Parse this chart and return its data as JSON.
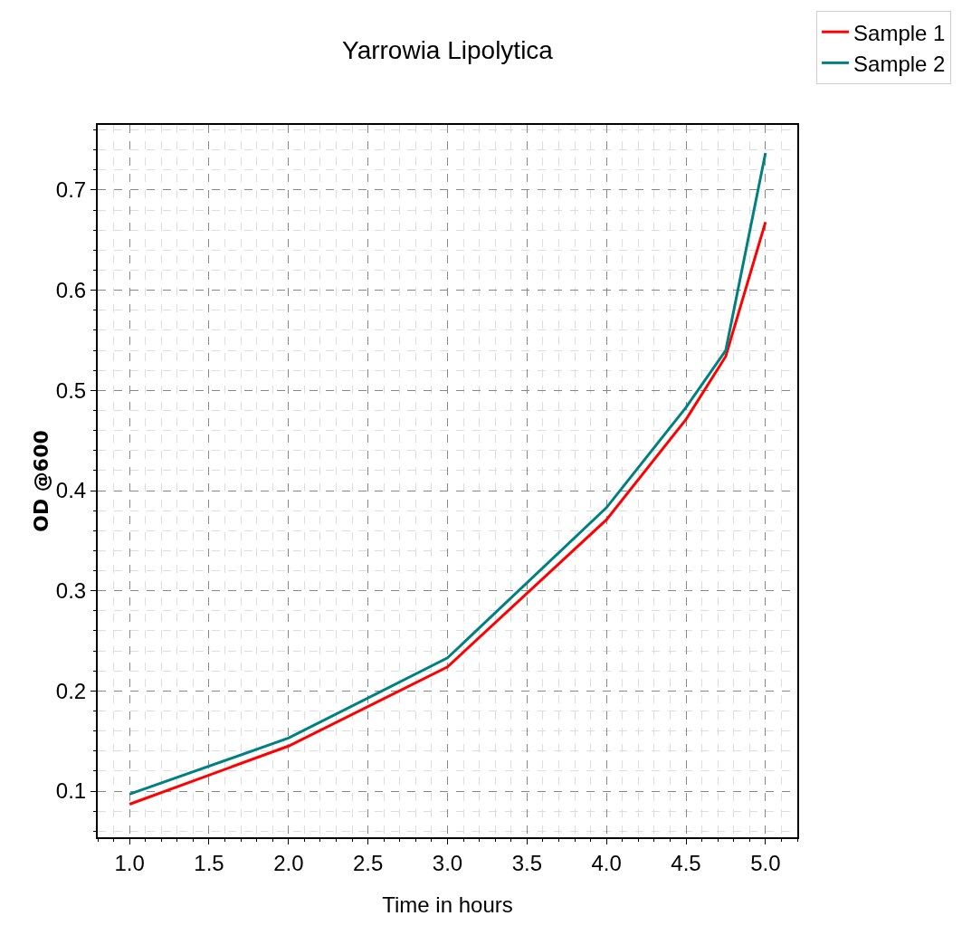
{
  "chart_data": {
    "type": "line",
    "title": "Yarrowia Lipolytica",
    "xlabel": "Time in hours",
    "ylabel": "OD @600",
    "x": [
      1,
      2,
      3,
      4,
      4.5,
      4.75,
      5
    ],
    "series": [
      {
        "name": "Sample 1",
        "color": "#ff0000",
        "values": [
          0.087,
          0.145,
          0.224,
          0.371,
          0.471,
          0.534,
          0.668
        ]
      },
      {
        "name": "Sample 2",
        "color": "#008080",
        "values": [
          0.097,
          0.153,
          0.233,
          0.383,
          0.483,
          0.54,
          0.737
        ]
      }
    ],
    "xlim": [
      0.8,
      5.2
    ],
    "xticks": [
      {
        "value": 1,
        "label": "1.0"
      },
      1.5,
      {
        "value": 2,
        "label": "2.0"
      },
      2.5,
      {
        "value": 3,
        "label": "3.0"
      },
      3.5,
      {
        "value": 4,
        "label": "4.0"
      },
      4.5,
      {
        "value": 5,
        "label": "5.0"
      }
    ],
    "ylim": [
      0.054,
      0.765
    ],
    "yticks": [
      0.1,
      0.2,
      0.3,
      0.4,
      0.5,
      0.6,
      0.7
    ],
    "grid": true,
    "legend": "top right",
    "marker": "none",
    "line_style": "solid"
  }
}
